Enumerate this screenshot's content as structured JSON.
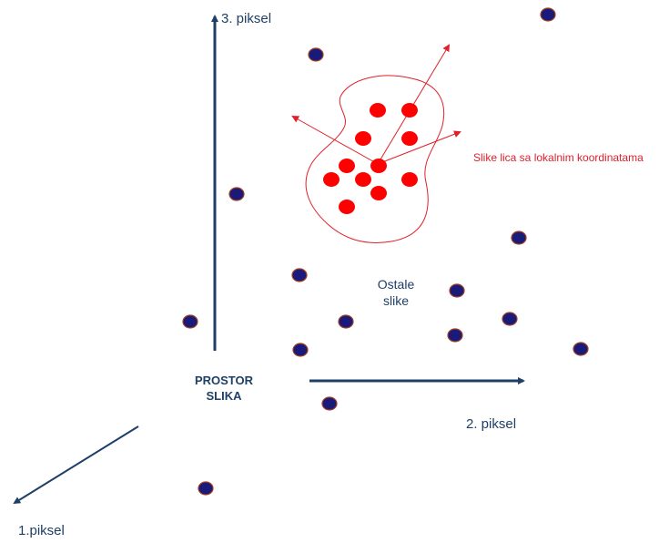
{
  "axes": {
    "axis1_label": "1.piksel",
    "axis2_label": "2. piksel",
    "axis3_label": "3. piksel"
  },
  "center_label": {
    "line1": "PROSTOR",
    "line2": "SLIKA"
  },
  "others_label": {
    "line1": "Ostale",
    "line2": "slike"
  },
  "faces_label": "Slike lica sa lokalnim koordinatama",
  "colors": {
    "axis": "#1f3f66",
    "dot_fill": "#1a1a7a",
    "dot_stroke": "#a04020",
    "face_red": "#ff0000",
    "outline_red": "#e0202a"
  }
}
